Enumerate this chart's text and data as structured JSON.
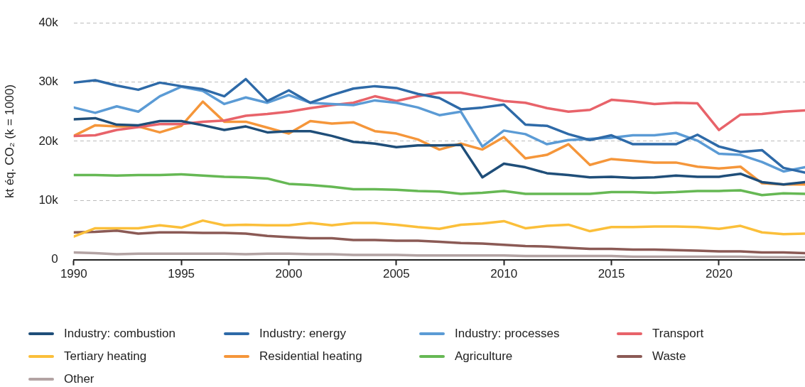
{
  "chart_data": {
    "type": "line",
    "ylabel": "kt éq. CO₂ (k = 1000)",
    "x": [
      1990,
      1991,
      1992,
      1993,
      1994,
      1995,
      1996,
      1997,
      1998,
      1999,
      2000,
      2001,
      2002,
      2003,
      2004,
      2005,
      2006,
      2007,
      2008,
      2009,
      2010,
      2011,
      2012,
      2013,
      2014,
      2015,
      2016,
      2017,
      2018,
      2019,
      2020,
      2021,
      2022,
      2023,
      2024
    ],
    "xlim": [
      1990,
      2024
    ],
    "xticks": [
      1990,
      1995,
      2000,
      2005,
      2010,
      2015,
      2020
    ],
    "ylim": [
      0,
      40000
    ],
    "yticks": [
      0,
      {
        "value": 10000,
        "label": "10k"
      },
      {
        "value": 20000,
        "label": "20k"
      },
      {
        "value": 30000,
        "label": "30k"
      },
      {
        "value": 40000,
        "label": "40k"
      }
    ],
    "grid": "y",
    "legend": "bottom",
    "marker": "none",
    "line_style": "solid",
    "series": [
      {
        "name": "Industry: combustion",
        "color": "#1f4e79",
        "values": [
          23700,
          23900,
          22800,
          22700,
          23400,
          23400,
          22700,
          21900,
          22500,
          21500,
          21700,
          21700,
          20900,
          19900,
          19600,
          19000,
          19300,
          19300,
          19400,
          13900,
          16200,
          15600,
          14600,
          14300,
          13900,
          14000,
          13800,
          13900,
          14200,
          14000,
          14000,
          14500,
          13100,
          12700,
          13100
        ]
      },
      {
        "name": "Industry: energy",
        "color": "#2e6aa8",
        "values": [
          29900,
          30300,
          29400,
          28700,
          29900,
          29300,
          28800,
          27600,
          30500,
          26800,
          28600,
          26500,
          27800,
          28900,
          29300,
          29000,
          28000,
          27300,
          25400,
          25700,
          26200,
          22800,
          22600,
          21200,
          20200,
          21000,
          19500,
          19500,
          19500,
          21100,
          19100,
          18200,
          18500,
          15500,
          14700
        ]
      },
      {
        "name": "Industry: processes",
        "color": "#5b9bd5",
        "values": [
          25700,
          24800,
          25900,
          25000,
          27600,
          29200,
          28500,
          26300,
          27400,
          26500,
          27800,
          26500,
          26300,
          26100,
          26900,
          26500,
          25700,
          24400,
          25000,
          19100,
          21800,
          21200,
          19500,
          20200,
          20400,
          20600,
          21000,
          21000,
          21400,
          20100,
          17900,
          17700,
          16500,
          14900,
          15600
        ]
      },
      {
        "name": "Transport",
        "color": "#e8636a",
        "values": [
          20900,
          21000,
          21900,
          22400,
          22900,
          22900,
          23300,
          23500,
          24300,
          24600,
          25000,
          25600,
          26100,
          26500,
          27600,
          26800,
          27600,
          28200,
          28200,
          27500,
          26800,
          26500,
          25600,
          25000,
          25300,
          27000,
          26700,
          26300,
          26500,
          26400,
          21900,
          24500,
          24600,
          25000,
          25200
        ]
      },
      {
        "name": "Tertiary heating",
        "color": "#fbbf3a",
        "values": [
          3900,
          5300,
          5300,
          5300,
          5800,
          5400,
          6600,
          5800,
          5900,
          5800,
          5800,
          6200,
          5800,
          6200,
          6200,
          5900,
          5500,
          5200,
          5900,
          6100,
          6500,
          5300,
          5700,
          5900,
          4800,
          5500,
          5500,
          5600,
          5600,
          5500,
          5200,
          5700,
          4600,
          4300,
          4400
        ]
      },
      {
        "name": "Residential heating",
        "color": "#f5963a",
        "values": [
          20900,
          22700,
          22500,
          22500,
          21500,
          22600,
          26700,
          23300,
          23300,
          22300,
          21300,
          23400,
          23000,
          23200,
          21700,
          21300,
          20300,
          18600,
          19600,
          18600,
          20700,
          17100,
          17700,
          19500,
          16000,
          17000,
          16700,
          16400,
          16400,
          15700,
          15400,
          15700,
          12900,
          12700,
          12700
        ]
      },
      {
        "name": "Agriculture",
        "color": "#66b854",
        "values": [
          14300,
          14300,
          14200,
          14300,
          14300,
          14400,
          14200,
          14000,
          13900,
          13700,
          12800,
          12600,
          12300,
          11900,
          11900,
          11800,
          11600,
          11500,
          11100,
          11300,
          11600,
          11100,
          11100,
          11100,
          11100,
          11400,
          11400,
          11300,
          11400,
          11600,
          11600,
          11700,
          10900,
          11200,
          11100
        ]
      },
      {
        "name": "Waste",
        "color": "#8b5a55",
        "values": [
          4600,
          4700,
          4900,
          4400,
          4600,
          4600,
          4500,
          4500,
          4400,
          4000,
          3800,
          3600,
          3600,
          3300,
          3300,
          3200,
          3200,
          3000,
          2800,
          2700,
          2500,
          2300,
          2200,
          2000,
          1800,
          1800,
          1700,
          1700,
          1600,
          1500,
          1400,
          1400,
          1200,
          1200,
          1100
        ]
      },
      {
        "name": "Other",
        "color": "#b3a3a3",
        "values": [
          1200,
          1100,
          900,
          1000,
          1000,
          1000,
          1000,
          1000,
          900,
          1000,
          1000,
          900,
          900,
          800,
          800,
          800,
          700,
          700,
          700,
          700,
          700,
          600,
          600,
          600,
          600,
          600,
          500,
          500,
          500,
          500,
          500,
          500,
          400,
          400,
          400
        ]
      }
    ]
  }
}
